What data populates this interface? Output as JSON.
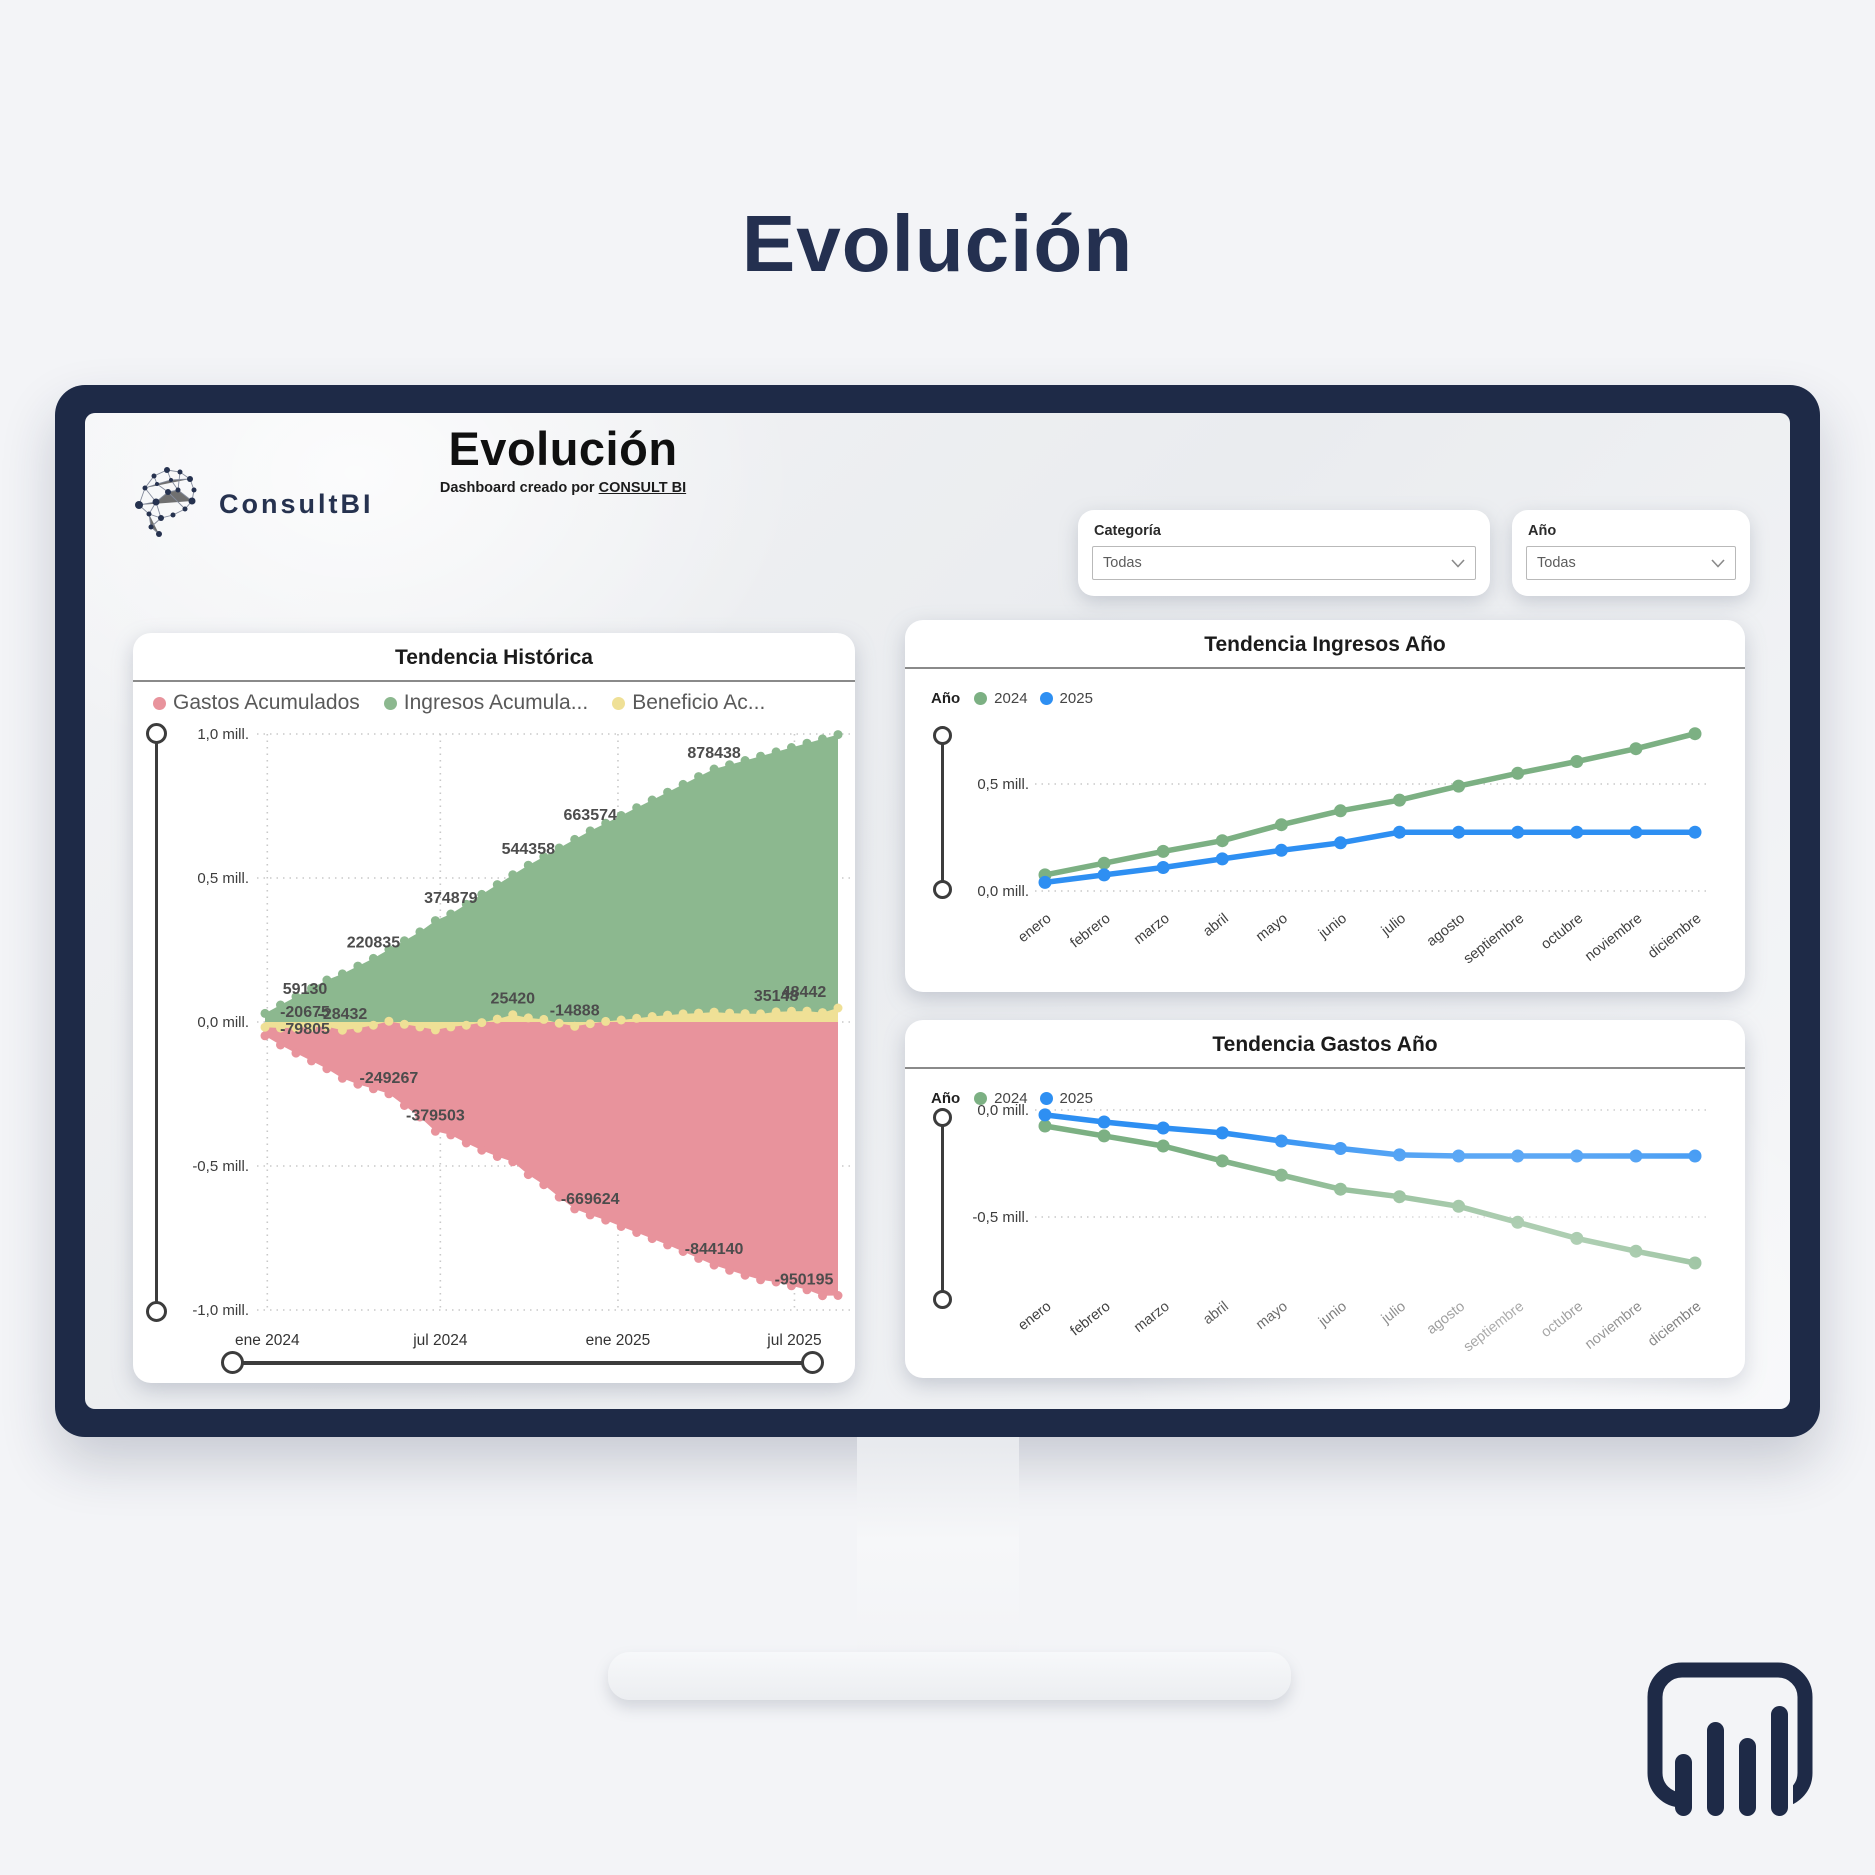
{
  "page": {
    "title": "Evolución"
  },
  "brand": {
    "name": "ConsultBI"
  },
  "dashboard": {
    "title": "Evolución",
    "subtitle_prefix": "Dashboard creado por ",
    "subtitle_link": "CONSULT BI",
    "filters": [
      {
        "label": "Categoría",
        "value": "Todas"
      },
      {
        "label": "Año",
        "value": "Todas"
      }
    ]
  },
  "colors": {
    "navy": "#1e2a47",
    "area_green": "#8cb88f",
    "area_red": "#e8939c",
    "area_yellow": "#efe096",
    "line_green": "#7cb083",
    "line_blue": "#2e8ff2"
  },
  "chart_data": [
    {
      "type": "area",
      "title": "Tendencia Histórica",
      "legend": [
        {
          "label": "Gastos Acumulados",
          "color": "#e8939c"
        },
        {
          "label": "Ingresos Acumula...",
          "color": "#8cb88f"
        },
        {
          "label": "Beneficio Ac...",
          "color": "#efe096"
        }
      ],
      "x_ticks": [
        {
          "label": "ene 2024",
          "pos": 0.004
        },
        {
          "label": "jul 2024",
          "pos": 0.306
        },
        {
          "label": "ene 2025",
          "pos": 0.616
        },
        {
          "label": "jul 2025",
          "pos": 0.924
        }
      ],
      "y_ticks": [
        {
          "label": "1,0 mill.",
          "value": 1000000
        },
        {
          "label": "0,5 mill.",
          "value": 500000
        },
        {
          "label": "0,0 mill.",
          "value": 0
        },
        {
          "label": "-0,5 mill.",
          "value": -500000
        },
        {
          "label": "-1,0 mill.",
          "value": -1000000
        }
      ],
      "ylim": [
        -1050000,
        1050000
      ],
      "series": {
        "ingresos": [
          30000,
          59130,
          88000,
          117000,
          146000,
          167000,
          194000,
          220835,
          252000,
          282000,
          313000,
          352000,
          374879,
          409000,
          443000,
          477000,
          511000,
          544358,
          574000,
          604000,
          634000,
          663574,
          690000,
          717000,
          744000,
          771000,
          798000,
          825000,
          852000,
          878438,
          893000,
          908000,
          923000,
          938000,
          953000,
          968000,
          983000,
          998000
        ],
        "gastos": [
          -48000,
          -79805,
          -108000,
          -135000,
          -162000,
          -195432,
          -216000,
          -232000,
          -249267,
          -290000,
          -330000,
          -379503,
          -392000,
          -420000,
          -445000,
          -467000,
          -485580,
          -530000,
          -565000,
          -608000,
          -648888,
          -669624,
          -688000,
          -710000,
          -731000,
          -752000,
          -774000,
          -797000,
          -821000,
          -844140,
          -862000,
          -879000,
          -895000,
          -902852,
          -916000,
          -930000,
          -950195,
          -949558
        ],
        "beneficio": [
          -18000,
          -20675,
          -20000,
          -18000,
          -16000,
          -28432,
          -22000,
          -11165,
          2733,
          -8000,
          -17000,
          -27503,
          -17121,
          -11000,
          -2000,
          10000,
          25420,
          14358,
          9000,
          -4000,
          -14888,
          -6050,
          2000,
          7000,
          13000,
          19000,
          24000,
          28000,
          31000,
          34298,
          31000,
          29000,
          28000,
          35148,
          37000,
          38000,
          32805,
          48442
        ]
      },
      "labels": [
        {
          "series": "ingresos",
          "idx": 1,
          "text": "59130"
        },
        {
          "series": "beneficio",
          "idx": 1,
          "text": "-20675"
        },
        {
          "series": "gastos",
          "idx": 1,
          "text": "-79805"
        },
        {
          "series": "beneficio",
          "idx": 5,
          "text": "-28432"
        },
        {
          "series": "ingresos",
          "idx": 7,
          "text": "220835"
        },
        {
          "series": "gastos",
          "idx": 8,
          "text": "-249267"
        },
        {
          "series": "gastos",
          "idx": 11,
          "text": "-379503"
        },
        {
          "series": "ingresos",
          "idx": 12,
          "text": "374879"
        },
        {
          "series": "beneficio",
          "idx": 16,
          "text": "25420"
        },
        {
          "series": "ingresos",
          "idx": 17,
          "text": "544358"
        },
        {
          "series": "beneficio",
          "idx": 20,
          "text": "-14888"
        },
        {
          "series": "ingresos",
          "idx": 21,
          "text": "663574"
        },
        {
          "series": "gastos",
          "idx": 21,
          "text": "-669624"
        },
        {
          "series": "ingresos",
          "idx": 29,
          "text": "878438"
        },
        {
          "series": "gastos",
          "idx": 29,
          "text": "-844140"
        },
        {
          "series": "beneficio",
          "idx": 33,
          "text": "35148"
        },
        {
          "series": "gastos",
          "idx": 36,
          "text": "-950195"
        },
        {
          "series": "beneficio",
          "idx": 37,
          "text": "48442"
        }
      ]
    },
    {
      "type": "line",
      "title": "Tendencia Ingresos Año",
      "legend_title": "Año",
      "categories": [
        "enero",
        "febrero",
        "marzo",
        "abril",
        "mayo",
        "junio",
        "julio",
        "agosto",
        "septiembre",
        "octubre",
        "noviembre",
        "diciembre"
      ],
      "y_ticks": [
        {
          "label": "0,5 mill.",
          "value": 500000
        },
        {
          "label": "0,0 mill.",
          "value": 0
        }
      ],
      "ylim": [
        0,
        850000
      ],
      "series": [
        {
          "name": "2024",
          "color": "#7cb083",
          "values": [
            75000,
            130000,
            185000,
            235000,
            310000,
            375000,
            425000,
            490000,
            550000,
            605000,
            665000,
            735000
          ]
        },
        {
          "name": "2025",
          "color": "#2e8ff2",
          "values": [
            40000,
            75000,
            110000,
            150000,
            190000,
            225000,
            275000,
            275000,
            275000,
            275000,
            275000,
            275000
          ]
        }
      ]
    },
    {
      "type": "line",
      "title": "Tendencia Gastos Año",
      "legend_title": "Año",
      "categories": [
        "enero",
        "febrero",
        "marzo",
        "abril",
        "mayo",
        "junio",
        "julio",
        "agosto",
        "septiembre",
        "octubre",
        "noviembre",
        "diciembre"
      ],
      "y_ticks": [
        {
          "label": "0,0 mill.",
          "value": 0
        },
        {
          "label": "-0,5 mill.",
          "value": -500000
        }
      ],
      "ylim": [
        -850000,
        0
      ],
      "series": [
        {
          "name": "2024",
          "color": "#7cb083",
          "values": [
            -75000,
            -121000,
            -168000,
            -238000,
            -304000,
            -370000,
            -405000,
            -450000,
            -525000,
            -600000,
            -660000,
            -715000
          ]
        },
        {
          "name": "2025",
          "color": "#2e8ff2",
          "values": [
            -23000,
            -56000,
            -84000,
            -107000,
            -145000,
            -180000,
            -210000,
            -215000,
            -215000,
            -215000,
            -215000,
            -215000
          ]
        }
      ]
    }
  ]
}
